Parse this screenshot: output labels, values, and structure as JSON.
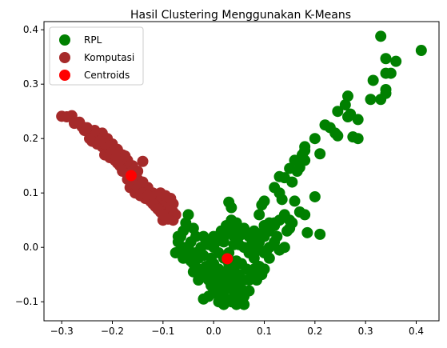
{
  "chart_data": {
    "type": "scatter",
    "title": "Hasil Clustering Menggunakan  K-Means",
    "xlabel": "",
    "ylabel": "",
    "xlim": [
      -0.335,
      0.445
    ],
    "ylim": [
      -0.135,
      0.415
    ],
    "xticks": [
      -0.3,
      -0.2,
      -0.1,
      0.0,
      0.1,
      0.2,
      0.3,
      0.4
    ],
    "yticks": [
      -0.1,
      0.0,
      0.1,
      0.2,
      0.3,
      0.4
    ],
    "xtick_labels": [
      "−0.3",
      "−0.2",
      "−0.1",
      "0.0",
      "0.1",
      "0.2",
      "0.3",
      "0.4"
    ],
    "ytick_labels": [
      "−0.1",
      "0.0",
      "0.1",
      "0.2",
      "0.3",
      "0.4"
    ],
    "grid": false,
    "legend_position": "top-left",
    "series": [
      {
        "name": "RPL",
        "color": "#008000",
        "points": [
          [
            0.33,
            0.388
          ],
          [
            0.41,
            0.362
          ],
          [
            0.34,
            0.347
          ],
          [
            0.36,
            0.342
          ],
          [
            0.34,
            0.32
          ],
          [
            0.35,
            0.32
          ],
          [
            0.315,
            0.307
          ],
          [
            0.34,
            0.29
          ],
          [
            0.34,
            0.283
          ],
          [
            0.31,
            0.272
          ],
          [
            0.33,
            0.272
          ],
          [
            0.265,
            0.278
          ],
          [
            0.26,
            0.262
          ],
          [
            0.27,
            0.245
          ],
          [
            0.265,
            0.24
          ],
          [
            0.245,
            0.25
          ],
          [
            0.285,
            0.235
          ],
          [
            0.22,
            0.225
          ],
          [
            0.23,
            0.22
          ],
          [
            0.24,
            0.21
          ],
          [
            0.245,
            0.205
          ],
          [
            0.275,
            0.203
          ],
          [
            0.285,
            0.2
          ],
          [
            0.2,
            0.2
          ],
          [
            0.18,
            0.185
          ],
          [
            0.18,
            0.178
          ],
          [
            0.175,
            0.17
          ],
          [
            0.21,
            0.172
          ],
          [
            0.18,
            0.16
          ],
          [
            0.16,
            0.16
          ],
          [
            0.17,
            0.147
          ],
          [
            0.15,
            0.145
          ],
          [
            0.165,
            0.14
          ],
          [
            0.14,
            0.128
          ],
          [
            0.155,
            0.12
          ],
          [
            0.13,
            0.13
          ],
          [
            0.12,
            0.11
          ],
          [
            0.13,
            0.1
          ],
          [
            0.135,
            0.088
          ],
          [
            0.16,
            0.085
          ],
          [
            0.1,
            0.085
          ],
          [
            0.095,
            0.078
          ],
          [
            0.17,
            0.065
          ],
          [
            0.18,
            0.06
          ],
          [
            0.09,
            0.06
          ],
          [
            0.2,
            0.093
          ],
          [
            0.15,
            0.035
          ],
          [
            0.145,
            0.03
          ],
          [
            0.11,
            0.045
          ],
          [
            0.185,
            0.027
          ],
          [
            0.21,
            0.024
          ],
          [
            0.03,
            0.083
          ],
          [
            0.035,
            0.073
          ],
          [
            0.035,
            0.05
          ],
          [
            0.13,
            0.05
          ],
          [
            0.12,
            0.045
          ],
          [
            0.1,
            0.04
          ],
          [
            0.1,
            0.03
          ],
          [
            0.06,
            0.035
          ],
          [
            0.05,
            0.02
          ],
          [
            0.04,
            0.02
          ],
          [
            0.02,
            0.02
          ],
          [
            0.0,
            0.02
          ],
          [
            -0.02,
            0.02
          ],
          [
            -0.04,
            0.035
          ],
          [
            -0.05,
            0.06
          ],
          [
            -0.055,
            0.045
          ],
          [
            -0.06,
            0.03
          ],
          [
            -0.065,
            0.02
          ],
          [
            -0.07,
            0.01
          ],
          [
            -0.075,
            -0.01
          ],
          [
            -0.06,
            -0.02
          ],
          [
            -0.05,
            0.0
          ],
          [
            -0.04,
            -0.03
          ],
          [
            -0.03,
            -0.04
          ],
          [
            -0.02,
            -0.05
          ],
          [
            -0.01,
            -0.06
          ],
          [
            0.0,
            -0.055
          ],
          [
            0.01,
            -0.07
          ],
          [
            0.02,
            -0.08
          ],
          [
            0.03,
            -0.075
          ],
          [
            0.04,
            -0.09
          ],
          [
            0.05,
            -0.1
          ],
          [
            0.06,
            -0.105
          ],
          [
            0.0,
            -0.08
          ],
          [
            -0.01,
            -0.09
          ],
          [
            -0.02,
            -0.095
          ],
          [
            0.01,
            -0.1
          ],
          [
            0.02,
            -0.105
          ],
          [
            -0.03,
            -0.06
          ],
          [
            -0.04,
            -0.045
          ],
          [
            0.07,
            -0.06
          ],
          [
            0.08,
            -0.04
          ],
          [
            0.09,
            -0.035
          ],
          [
            0.08,
            -0.02
          ],
          [
            0.07,
            -0.01
          ],
          [
            0.06,
            0.0
          ],
          [
            0.05,
            0.005
          ],
          [
            0.1,
            -0.01
          ],
          [
            0.11,
            0.0
          ],
          [
            0.12,
            0.01
          ],
          [
            0.14,
            0.0
          ],
          [
            0.13,
            -0.005
          ],
          [
            0.09,
            0.01
          ],
          [
            0.08,
            0.015
          ],
          [
            0.0,
            0.0
          ],
          [
            0.01,
            -0.01
          ],
          [
            0.02,
            -0.02
          ],
          [
            0.03,
            -0.03
          ],
          [
            0.04,
            -0.04
          ],
          [
            0.05,
            -0.05
          ],
          [
            0.06,
            -0.06
          ],
          [
            -0.01,
            0.005
          ],
          [
            -0.02,
            -0.015
          ],
          [
            -0.03,
            -0.02
          ],
          [
            0.0,
            -0.03
          ],
          [
            0.01,
            -0.04
          ],
          [
            0.02,
            -0.045
          ],
          [
            0.03,
            -0.05
          ],
          [
            0.04,
            -0.06
          ],
          [
            0.05,
            -0.07
          ],
          [
            0.06,
            -0.08
          ],
          [
            0.0,
            -0.065
          ],
          [
            0.015,
            -0.055
          ],
          [
            0.025,
            -0.065
          ],
          [
            0.035,
            -0.035
          ],
          [
            0.045,
            -0.025
          ],
          [
            0.055,
            -0.03
          ],
          [
            0.065,
            -0.04
          ],
          [
            0.075,
            -0.05
          ],
          [
            0.085,
            -0.06
          ],
          [
            0.03,
            -0.01
          ],
          [
            0.04,
            0.005
          ],
          [
            0.02,
            0.01
          ],
          [
            0.01,
            0.012
          ],
          [
            -0.005,
            -0.02
          ],
          [
            -0.015,
            -0.035
          ],
          [
            -0.025,
            -0.045
          ],
          [
            0.005,
            -0.085
          ],
          [
            0.015,
            -0.09
          ],
          [
            -0.045,
            -0.025
          ],
          [
            -0.05,
            -0.015
          ],
          [
            -0.035,
            -0.01
          ],
          [
            -0.025,
            0.0
          ],
          [
            -0.015,
            0.01
          ],
          [
            0.05,
            0.03
          ],
          [
            0.06,
            0.025
          ],
          [
            0.07,
            0.02
          ],
          [
            0.08,
            0.03
          ],
          [
            0.09,
            0.025
          ],
          [
            0.1,
            0.02
          ],
          [
            0.11,
            0.03
          ],
          [
            0.12,
            0.04
          ],
          [
            0.125,
            0.02
          ],
          [
            0.14,
            0.06
          ],
          [
            0.15,
            0.05
          ],
          [
            0.155,
            0.045
          ],
          [
            0.025,
            0.04
          ],
          [
            0.035,
            0.03
          ],
          [
            0.045,
            0.045
          ],
          [
            0.015,
            0.03
          ],
          [
            -0.065,
            -0.005
          ],
          [
            -0.07,
            0.02
          ],
          [
            -0.055,
            0.0
          ],
          [
            -0.045,
            0.01
          ],
          [
            -0.035,
            0.02
          ],
          [
            0.0,
            -0.045
          ],
          [
            -0.005,
            -0.07
          ],
          [
            0.06,
            -0.09
          ],
          [
            0.07,
            -0.08
          ],
          [
            0.045,
            -0.08
          ],
          [
            0.055,
            -0.095
          ],
          [
            0.025,
            -0.095
          ],
          [
            0.035,
            -0.1
          ],
          [
            0.045,
            -0.105
          ],
          [
            0.095,
            -0.05
          ],
          [
            0.1,
            -0.04
          ],
          [
            0.11,
            -0.02
          ],
          [
            0.105,
            -0.005
          ],
          [
            0.09,
            -0.005
          ],
          [
            0.085,
            0.0
          ],
          [
            0.075,
            0.005
          ]
        ]
      },
      {
        "name": "Komputasi",
        "color": "#a52a2a",
        "points": [
          [
            -0.3,
            0.241
          ],
          [
            -0.29,
            0.24
          ],
          [
            -0.28,
            0.242
          ],
          [
            -0.275,
            0.228
          ],
          [
            -0.26,
            0.222
          ],
          [
            -0.255,
            0.215
          ],
          [
            -0.245,
            0.21
          ],
          [
            -0.235,
            0.205
          ],
          [
            -0.225,
            0.205
          ],
          [
            -0.24,
            0.195
          ],
          [
            -0.23,
            0.19
          ],
          [
            -0.22,
            0.185
          ],
          [
            -0.21,
            0.18
          ],
          [
            -0.2,
            0.175
          ],
          [
            -0.215,
            0.17
          ],
          [
            -0.205,
            0.165
          ],
          [
            -0.195,
            0.16
          ],
          [
            -0.19,
            0.155
          ],
          [
            -0.185,
            0.15
          ],
          [
            -0.175,
            0.15
          ],
          [
            -0.165,
            0.145
          ],
          [
            -0.18,
            0.14
          ],
          [
            -0.17,
            0.135
          ],
          [
            -0.16,
            0.13
          ],
          [
            -0.15,
            0.125
          ],
          [
            -0.155,
            0.12
          ],
          [
            -0.145,
            0.115
          ],
          [
            -0.14,
            0.11
          ],
          [
            -0.135,
            0.105
          ],
          [
            -0.13,
            0.1
          ],
          [
            -0.125,
            0.095
          ],
          [
            -0.12,
            0.09
          ],
          [
            -0.115,
            0.085
          ],
          [
            -0.11,
            0.08
          ],
          [
            -0.105,
            0.075
          ],
          [
            -0.1,
            0.07
          ],
          [
            -0.095,
            0.065
          ],
          [
            -0.09,
            0.06
          ],
          [
            -0.085,
            0.055
          ],
          [
            -0.08,
            0.05
          ],
          [
            -0.1,
            0.05
          ],
          [
            -0.095,
            0.055
          ],
          [
            -0.09,
            0.07
          ],
          [
            -0.085,
            0.075
          ],
          [
            -0.08,
            0.065
          ],
          [
            -0.075,
            0.06
          ],
          [
            -0.08,
            0.08
          ],
          [
            -0.09,
            0.085
          ],
          [
            -0.1,
            0.09
          ],
          [
            -0.11,
            0.095
          ],
          [
            -0.12,
            0.1
          ],
          [
            -0.13,
            0.11
          ],
          [
            -0.14,
            0.12
          ],
          [
            -0.15,
            0.14
          ],
          [
            -0.16,
            0.15
          ],
          [
            -0.17,
            0.16
          ],
          [
            -0.18,
            0.17
          ],
          [
            -0.19,
            0.18
          ],
          [
            -0.2,
            0.19
          ],
          [
            -0.21,
            0.2
          ],
          [
            -0.22,
            0.21
          ],
          [
            -0.235,
            0.215
          ],
          [
            -0.25,
            0.22
          ],
          [
            -0.265,
            0.23
          ],
          [
            -0.14,
            0.158
          ],
          [
            -0.16,
            0.14
          ],
          [
            -0.165,
            0.11
          ],
          [
            -0.155,
            0.1
          ],
          [
            -0.145,
            0.095
          ],
          [
            -0.135,
            0.09
          ],
          [
            -0.125,
            0.085
          ],
          [
            -0.115,
            0.075
          ],
          [
            -0.105,
            0.065
          ],
          [
            -0.095,
            0.06
          ],
          [
            -0.085,
            0.068
          ],
          [
            -0.08,
            0.058
          ],
          [
            -0.09,
            0.052
          ],
          [
            -0.185,
            0.16
          ],
          [
            -0.175,
            0.168
          ],
          [
            -0.195,
            0.17
          ],
          [
            -0.205,
            0.18
          ],
          [
            -0.215,
            0.19
          ],
          [
            -0.225,
            0.195
          ],
          [
            -0.245,
            0.2
          ],
          [
            -0.17,
            0.125
          ],
          [
            -0.16,
            0.118
          ],
          [
            -0.15,
            0.11
          ],
          [
            -0.14,
            0.1
          ],
          [
            -0.13,
            0.095
          ],
          [
            -0.12,
            0.08
          ],
          [
            -0.11,
            0.07
          ],
          [
            -0.1,
            0.06
          ],
          [
            -0.105,
            0.1
          ],
          [
            -0.095,
            0.095
          ],
          [
            -0.085,
            0.09
          ]
        ]
      },
      {
        "name": "Centroids",
        "color": "#ff0000",
        "points": [
          [
            -0.163,
            0.132
          ],
          [
            0.027,
            -0.021
          ]
        ]
      }
    ]
  }
}
